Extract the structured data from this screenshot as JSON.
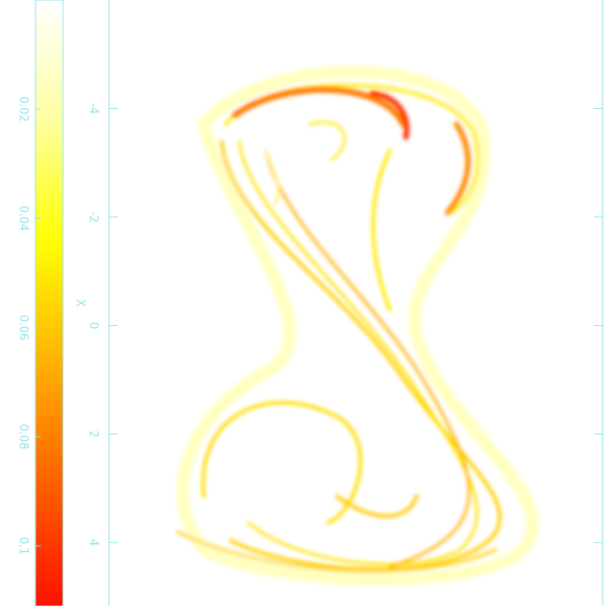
{
  "chart_data": {
    "type": "heatmap",
    "x_label": "X",
    "xlim": [
      -6,
      5.17
    ],
    "xticks": [
      -4,
      -2,
      0,
      2,
      4
    ],
    "clim": [
      0,
      0.111
    ],
    "cticks": [
      0.02,
      0.04,
      0.06,
      0.08,
      0.1
    ],
    "colormap": [
      "#ffffff",
      "#ffffa0",
      "#ffff00",
      "#ffb000",
      "#ff6000",
      "#ff1000"
    ]
  }
}
